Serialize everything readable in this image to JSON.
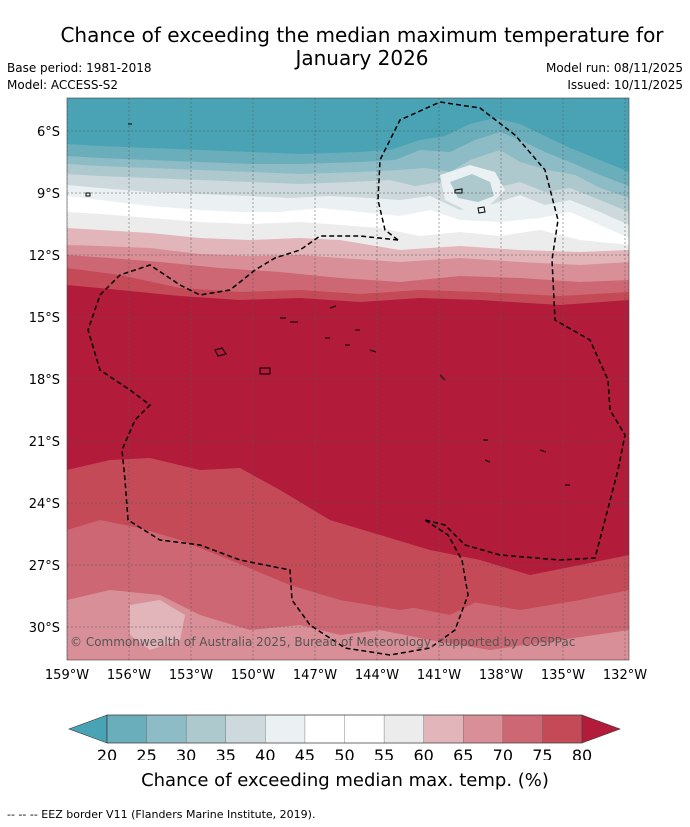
{
  "header": {
    "title_line1": "Chance of exceeding the median maximum temperature for",
    "title_line2": "January 2026",
    "base_period": "Base period: 1981-2018",
    "model": "Model: ACCESS-S2",
    "model_run": "Model run: 08/11/2025",
    "issued": "Issued: 10/11/2025"
  },
  "map": {
    "lat_labels": [
      "6°S",
      "9°S",
      "12°S",
      "15°S",
      "18°S",
      "21°S",
      "24°S",
      "27°S",
      "30°S"
    ],
    "lon_labels": [
      "159°W",
      "156°W",
      "153°W",
      "150°W",
      "147°W",
      "144°W",
      "141°W",
      "138°W",
      "135°W",
      "132°W"
    ],
    "copyright": "© Commonwealth of Australia 2025, Bureau of Meteorology, supported by COSPPac",
    "colors": {
      "c20": "#4aa3b4",
      "c25": "#6aaebb",
      "c30": "#8ebcc6",
      "c35": "#adc9ce",
      "c40": "#cdd9dc",
      "c45": "#ebf0f2",
      "c50": "#ffffff",
      "c55": "#ececec",
      "c60": "#e2b5ba",
      "c65": "#d98f98",
      "c70": "#cc6773",
      "c75": "#c44a58",
      "c80": "#b21c3a"
    }
  },
  "colorbar": {
    "ticks": [
      "20",
      "25",
      "30",
      "35",
      "40",
      "45",
      "50",
      "55",
      "60",
      "65",
      "70",
      "75",
      "80"
    ],
    "bins": [
      "#6aaebb",
      "#8ebcc6",
      "#adc9ce",
      "#cdd9dc",
      "#ebf0f2",
      "#ffffff",
      "#ffffff",
      "#ececec",
      "#e2b5ba",
      "#d98f98",
      "#cc6773",
      "#c44a58"
    ],
    "under_color": "#4aa3b4",
    "over_color": "#b21c3a",
    "label": "Chance of exceeding median max. temp. (%)"
  },
  "legend": {
    "footnote": "--  --  -- EEZ border V11 (Flanders Marine Institute, 2019)."
  }
}
